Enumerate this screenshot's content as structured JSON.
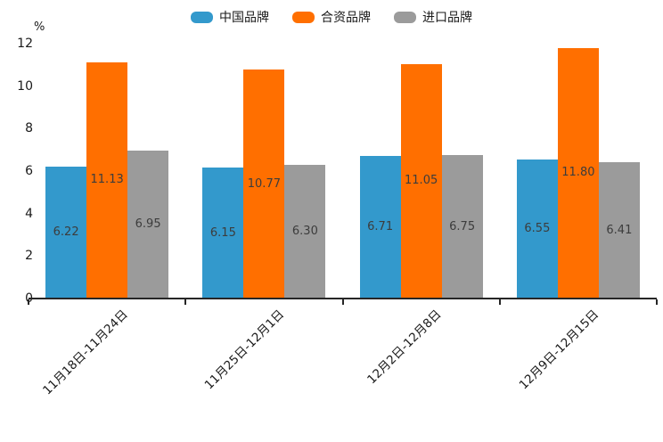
{
  "chart_data": {
    "type": "bar",
    "title": "",
    "ylabel": "%",
    "xlabel": "",
    "categories": [
      "11月18日-11月24日",
      "11月25日-12月1日",
      "12月2日-12月8日",
      "12月9日-12月15日"
    ],
    "series": [
      {
        "name": "中国品牌",
        "color": "#3399CC",
        "values": [
          6.22,
          6.15,
          6.71,
          6.55
        ]
      },
      {
        "name": "合资品牌",
        "color": "#FF6F00",
        "values": [
          11.13,
          10.77,
          11.05,
          11.8
        ]
      },
      {
        "name": "进口品牌",
        "color": "#9B9B9B",
        "values": [
          6.95,
          6.3,
          6.75,
          6.41
        ]
      }
    ],
    "value_labels": [
      [
        "6.22",
        "11.13",
        "6.95"
      ],
      [
        "6.15",
        "10.77",
        "6.30"
      ],
      [
        "6.71",
        "11.05",
        "6.75"
      ],
      [
        "6.55",
        "11.80",
        "6.41"
      ]
    ],
    "y_ticks": [
      "0",
      "2",
      "4",
      "6",
      "8",
      "10",
      "12"
    ],
    "ylim": [
      0,
      12
    ],
    "grid": false,
    "legend_position": "top-center",
    "background_color": "#ffffff",
    "axis_color": "#262626"
  }
}
